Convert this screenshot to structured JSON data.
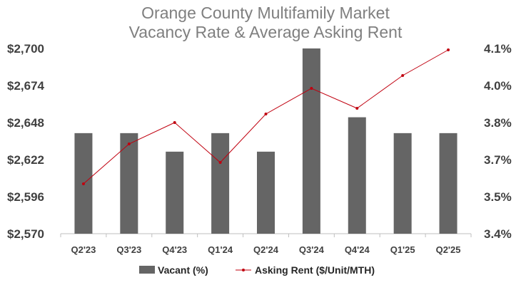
{
  "chart_data": {
    "type": "bar+line",
    "title": [
      "Orange County Multifamily Market",
      "Vacancy Rate & Average Asking Rent"
    ],
    "categories": [
      "Q2'23",
      "Q3'23",
      "Q4'23",
      "Q1'24",
      "Q2'24",
      "Q3'24",
      "Q4'24",
      "Q1'25",
      "Q2'25"
    ],
    "series": [
      {
        "name": "Vacant (%)",
        "type": "bar",
        "axis": "right",
        "color": "#656565",
        "values": [
          3.78,
          3.78,
          3.71,
          3.78,
          3.71,
          4.1,
          3.84,
          3.78,
          3.78
        ]
      },
      {
        "name": "Asking Rent ($/Unit/MTH)",
        "type": "line",
        "axis": "left",
        "color": "#c0000f",
        "values": [
          2605,
          2633,
          2648,
          2620,
          2654,
          2672,
          2658,
          2681,
          2699
        ]
      }
    ],
    "left_axis": {
      "ticks": [
        "$2,570",
        "$2,596",
        "$2,622",
        "$2,648",
        "$2,674",
        "$2,700"
      ],
      "ylim": [
        2570,
        2700
      ]
    },
    "right_axis": {
      "ticks": [
        "3.4%",
        "3.5%",
        "3.7%",
        "3.8%",
        "4.0%",
        "4.1%"
      ],
      "ylim": [
        3.4,
        4.1
      ]
    },
    "grid": false,
    "legend_position": "bottom"
  }
}
